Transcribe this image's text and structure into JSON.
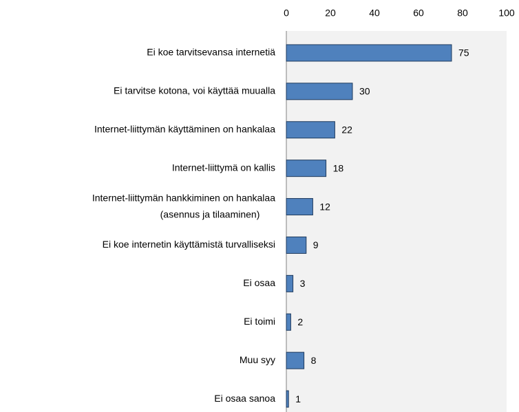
{
  "chart_data": {
    "type": "bar",
    "orientation": "horizontal",
    "categories": [
      "Ei koe tarvitsevansa internetiä",
      "Ei tarvitse kotona, voi käyttää muualla",
      "Internet-liittymän käyttäminen on hankalaa",
      "Internet-liittymä on kallis",
      [
        "Internet-liittymän hankkiminen on hankalaa",
        "(asennus ja tilaaminen)"
      ],
      "Ei koe internetin käyttämistä turvalliseksi",
      "Ei osaa",
      "Ei toimi",
      "Muu syy",
      "Ei osaa sanoa"
    ],
    "values": [
      75,
      30,
      22,
      18,
      12,
      9,
      3,
      2,
      8,
      1
    ],
    "color": "#4f81bd",
    "xlim": [
      0,
      100
    ],
    "xticks": [
      0,
      20,
      40,
      60,
      80,
      100
    ],
    "grid": false
  }
}
